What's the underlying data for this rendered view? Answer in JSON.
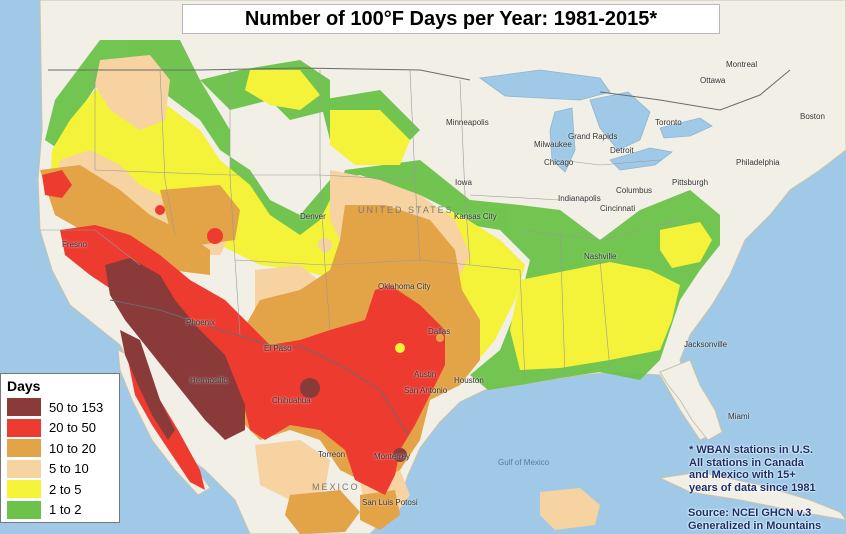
{
  "title": "Number of 100°F Days per Year: 1981-2015*",
  "legend": {
    "title": "Days",
    "items": [
      {
        "label": "50 to 153",
        "color": "#8b3a3a"
      },
      {
        "label": "20 to 50",
        "color": "#ee3b30"
      },
      {
        "label": "10 to 20",
        "color": "#e3a347"
      },
      {
        "label": "5 to 10",
        "color": "#f6d3a0"
      },
      {
        "label": "2 to 5",
        "color": "#f5f23a"
      },
      {
        "label": "1 to 2",
        "color": "#6cc24a"
      }
    ]
  },
  "footnote": {
    "line1": "* WBAN stations in U.S.",
    "line2": "All stations in Canada",
    "line3": "and Mexico with 15+",
    "line4": "years of data since 1981"
  },
  "source": {
    "line1": "Source: NCEI  GHCN v.3",
    "line2": "Generalized in Mountains"
  },
  "map_labels": {
    "united_states": "UNITED STATES",
    "mexico": "MEXICO",
    "gulf": "Gulf of Mexico",
    "cities": {
      "montreal": "Montreal",
      "ottawa": "Ottawa",
      "toronto": "Toronto",
      "boston": "Boston",
      "minneapolis": "Minneapolis",
      "milwaukee": "Milwaukee",
      "chicago": "Chicago",
      "grand_rapids": "Grand Rapids",
      "detroit": "Detroit",
      "columbus": "Columbus",
      "indianapolis": "Indianapolis",
      "cincinnati": "Cincinnati",
      "pittsburgh": "Pittsburgh",
      "philadelphia": "Philadelphia",
      "iowa": "Iowa",
      "kansas_city": "Kansas City",
      "nashville": "Nashville",
      "denver": "Denver",
      "fresno": "Fresno",
      "phoenix": "Phoenix",
      "oklahoma_city": "Oklahoma City",
      "dallas": "Dallas",
      "austin": "Austin",
      "san_antonio": "San Antonio",
      "houston": "Houston",
      "el_paso": "El Paso",
      "chihuahua": "Chihuahua",
      "hermosillo": "Hermosillo",
      "monterrey": "Monterrey",
      "torreon": "Torreon",
      "san_luis_potosi": "San Luis Potosi",
      "jacksonville": "Jacksonville",
      "miami": "Miami"
    }
  }
}
